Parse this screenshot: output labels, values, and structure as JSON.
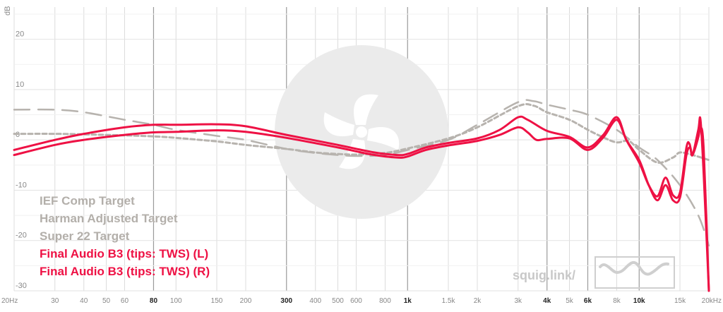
{
  "chart_data": {
    "type": "line",
    "xscale": "log",
    "xlim": [
      20,
      20000
    ],
    "ylim": [
      -30,
      25
    ],
    "ylabel": "dB",
    "yticks": [
      20,
      10,
      0,
      -10,
      -20,
      -30
    ],
    "xticks": [
      {
        "v": 20,
        "label": "20Hz",
        "major": false
      },
      {
        "v": 30,
        "label": "30",
        "major": false
      },
      {
        "v": 40,
        "label": "40",
        "major": false
      },
      {
        "v": 50,
        "label": "50",
        "major": false
      },
      {
        "v": 60,
        "label": "60",
        "major": false
      },
      {
        "v": 80,
        "label": "80",
        "major": true
      },
      {
        "v": 100,
        "label": "100",
        "major": false
      },
      {
        "v": 150,
        "label": "150",
        "major": false
      },
      {
        "v": 200,
        "label": "200",
        "major": false
      },
      {
        "v": 300,
        "label": "300",
        "major": true
      },
      {
        "v": 400,
        "label": "400",
        "major": false
      },
      {
        "v": 500,
        "label": "500",
        "major": false
      },
      {
        "v": 600,
        "label": "600",
        "major": false
      },
      {
        "v": 800,
        "label": "800",
        "major": false
      },
      {
        "v": 1000,
        "label": "1k",
        "major": true
      },
      {
        "v": 1500,
        "label": "1.5k",
        "major": false
      },
      {
        "v": 2000,
        "label": "2k",
        "major": false
      },
      {
        "v": 3000,
        "label": "3k",
        "major": false
      },
      {
        "v": 4000,
        "label": "4k",
        "major": true
      },
      {
        "v": 5000,
        "label": "5k",
        "major": false
      },
      {
        "v": 6000,
        "label": "6k",
        "major": true
      },
      {
        "v": 8000,
        "label": "8k",
        "major": false
      },
      {
        "v": 10000,
        "label": "10k",
        "major": true
      },
      {
        "v": 15000,
        "label": "15k",
        "major": false
      },
      {
        "v": 20000,
        "label": "20kHz",
        "major": false
      }
    ],
    "series": [
      {
        "name": "IEF Comp Target",
        "color": "#b7b3ae",
        "dash": "22,12",
        "width": 2.5,
        "points": [
          [
            20,
            6
          ],
          [
            30,
            6
          ],
          [
            40,
            5.5
          ],
          [
            60,
            4
          ],
          [
            80,
            3
          ],
          [
            100,
            2
          ],
          [
            150,
            0.8
          ],
          [
            200,
            0
          ],
          [
            300,
            -1.8
          ],
          [
            400,
            -2.6
          ],
          [
            500,
            -3
          ],
          [
            600,
            -3.2
          ],
          [
            800,
            -3
          ],
          [
            1000,
            -2
          ],
          [
            1500,
            0
          ],
          [
            2000,
            3
          ],
          [
            3000,
            7.5
          ],
          [
            3500,
            7.7
          ],
          [
            4000,
            7
          ],
          [
            5000,
            6
          ],
          [
            6000,
            5
          ],
          [
            8000,
            2
          ],
          [
            10000,
            -1.5
          ],
          [
            12000,
            -4
          ],
          [
            15000,
            -9
          ],
          [
            18000,
            -15
          ],
          [
            20000,
            -21
          ]
        ]
      },
      {
        "name": "Harman Adjusted Target",
        "color": "#b7b3ae",
        "dash": "6,4",
        "width": 3,
        "points": [
          [
            20,
            1.2
          ],
          [
            30,
            1.2
          ],
          [
            40,
            1.1
          ],
          [
            60,
            0.9
          ],
          [
            80,
            0.7
          ],
          [
            100,
            0.4
          ],
          [
            150,
            -0.3
          ],
          [
            200,
            -1
          ],
          [
            300,
            -1.8
          ],
          [
            400,
            -2.5
          ],
          [
            500,
            -2.8
          ],
          [
            600,
            -2.9
          ],
          [
            800,
            -2.6
          ],
          [
            1000,
            -1.7
          ],
          [
            1500,
            0.3
          ],
          [
            2000,
            2.5
          ],
          [
            3000,
            6.7
          ],
          [
            3500,
            6.8
          ],
          [
            4000,
            5.5
          ],
          [
            5000,
            4
          ],
          [
            6000,
            2
          ],
          [
            7000,
            0.5
          ],
          [
            8000,
            -0.5
          ],
          [
            9000,
            -0.2
          ],
          [
            10000,
            -2
          ],
          [
            12000,
            -4.5
          ],
          [
            14000,
            -3.5
          ],
          [
            15000,
            -2.5
          ],
          [
            17000,
            -3
          ],
          [
            20000,
            -4
          ]
        ]
      },
      {
        "name": "Super 22 Target",
        "color": "#b7b3ae",
        "dash": "0",
        "width": 2,
        "points": []
      },
      {
        "name": "Final Audio B3 (tips: TWS) (L)",
        "color": "#ee1144",
        "dash": "0",
        "width": 3,
        "points": [
          [
            20,
            -2
          ],
          [
            30,
            0
          ],
          [
            40,
            1.2
          ],
          [
            60,
            2.5
          ],
          [
            80,
            3
          ],
          [
            100,
            3
          ],
          [
            150,
            3.1
          ],
          [
            200,
            2.7
          ],
          [
            300,
            1
          ],
          [
            500,
            -1
          ],
          [
            700,
            -2.4
          ],
          [
            900,
            -3
          ],
          [
            1000,
            -2.8
          ],
          [
            1200,
            -1.5
          ],
          [
            1500,
            -0.6
          ],
          [
            2000,
            0.3
          ],
          [
            2500,
            2
          ],
          [
            3000,
            4.5
          ],
          [
            3300,
            4
          ],
          [
            4000,
            1.8
          ],
          [
            5000,
            0.6
          ],
          [
            6000,
            -1.5
          ],
          [
            7000,
            1
          ],
          [
            8000,
            4.5
          ],
          [
            8800,
            0
          ],
          [
            10000,
            -4.5
          ],
          [
            11000,
            -9
          ],
          [
            12000,
            -11.2
          ],
          [
            13000,
            -7.5
          ],
          [
            14000,
            -11
          ],
          [
            15000,
            -10.5
          ],
          [
            16000,
            -1.5
          ],
          [
            16500,
            -0.8
          ],
          [
            17000,
            -3
          ],
          [
            18000,
            0.5
          ],
          [
            18400,
            2.5
          ],
          [
            19000,
            -2
          ],
          [
            20000,
            -30
          ]
        ]
      },
      {
        "name": "Final Audio B3 (tips: TWS) (R)",
        "color": "#ee1144",
        "dash": "0",
        "width": 3,
        "points": [
          [
            20,
            -3
          ],
          [
            30,
            -1
          ],
          [
            40,
            0
          ],
          [
            60,
            1
          ],
          [
            80,
            1.5
          ],
          [
            100,
            1.6
          ],
          [
            150,
            1.9
          ],
          [
            200,
            1.6
          ],
          [
            300,
            0.4
          ],
          [
            500,
            -1.5
          ],
          [
            700,
            -2.9
          ],
          [
            900,
            -3.5
          ],
          [
            1000,
            -3.3
          ],
          [
            1200,
            -2
          ],
          [
            1500,
            -1.1
          ],
          [
            2000,
            -0.2
          ],
          [
            2500,
            1
          ],
          [
            3000,
            2.5
          ],
          [
            3300,
            1.5
          ],
          [
            3600,
            0
          ],
          [
            4000,
            0.2
          ],
          [
            5000,
            0.3
          ],
          [
            6000,
            -2
          ],
          [
            7000,
            0.5
          ],
          [
            8000,
            4
          ],
          [
            8800,
            0
          ],
          [
            10000,
            -4
          ],
          [
            11000,
            -9
          ],
          [
            12000,
            -12
          ],
          [
            13000,
            -9
          ],
          [
            14000,
            -12
          ],
          [
            15000,
            -11.5
          ],
          [
            16000,
            -3
          ],
          [
            16600,
            -1.5
          ],
          [
            17000,
            -3
          ],
          [
            18000,
            2
          ],
          [
            18400,
            4
          ],
          [
            19000,
            -7
          ],
          [
            20000,
            -30
          ]
        ]
      }
    ]
  },
  "legend": [
    {
      "label": "IEF Comp Target",
      "color": "#b3afaa"
    },
    {
      "label": "Harman Adjusted Target",
      "color": "#b3afaa"
    },
    {
      "label": "Super 22 Target",
      "color": "#b3afaa"
    },
    {
      "label": "Final Audio B3 (tips: TWS) (L)",
      "color": "#ee1144"
    },
    {
      "label": "Final Audio B3 (tips: TWS) (R)",
      "color": "#ee1144"
    }
  ],
  "watermark": {
    "text": "squig.link/"
  }
}
